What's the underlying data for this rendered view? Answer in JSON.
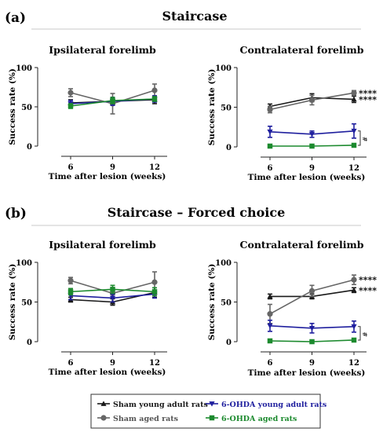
{
  "panels": [
    {
      "letter": "(a)",
      "title": "Staircase"
    },
    {
      "letter": "(b)",
      "title": "Staircase – Forced choice"
    }
  ],
  "chart_data": [
    {
      "type": "line",
      "panel": "(a)",
      "title": "Ipsilateral forelimb",
      "xlabel": "Time after lesion (weeks)",
      "ylabel": "Success rate (%)",
      "x": [
        6,
        9,
        12
      ],
      "xticks": [
        "6",
        "9",
        "12"
      ],
      "ylim": [
        0,
        100
      ],
      "yticks": [
        "0",
        "50",
        "100"
      ],
      "series": [
        {
          "name": "Sham young adult rats",
          "color": "#1a1a1a",
          "marker": "triangle-up",
          "values": [
            55,
            57,
            59
          ],
          "err": [
            4,
            5,
            5
          ]
        },
        {
          "name": "Sham aged rats",
          "color": "#666666",
          "marker": "circle",
          "values": [
            68,
            54,
            71
          ],
          "err": [
            5,
            13,
            8
          ]
        },
        {
          "name": "6-OHDA young adult rats",
          "color": "#1f1f9e",
          "marker": "triangle-down",
          "values": [
            54,
            57,
            60
          ],
          "err": [
            4,
            5,
            4
          ]
        },
        {
          "name": "6-OHDA aged rats",
          "color": "#1c8a2e",
          "marker": "square",
          "values": [
            51,
            58,
            60
          ],
          "err": [
            3,
            4,
            3
          ]
        }
      ],
      "annotations": []
    },
    {
      "type": "line",
      "panel": "(a)",
      "title": "Contralateral forelimb",
      "xlabel": "Time after lesion (weeks)",
      "ylabel": "Success rate (%)",
      "x": [
        6,
        9,
        12
      ],
      "xticks": [
        "6",
        "9",
        "12"
      ],
      "ylim": [
        0,
        100
      ],
      "yticks": [
        "0",
        "50",
        "100"
      ],
      "series": [
        {
          "name": "Sham young adult rats",
          "color": "#1a1a1a",
          "marker": "triangle-up",
          "values": [
            51,
            62,
            60
          ],
          "err": [
            3,
            5,
            4
          ]
        },
        {
          "name": "Sham aged rats",
          "color": "#666666",
          "marker": "circle",
          "values": [
            47,
            59,
            68
          ],
          "err": [
            4,
            6,
            3
          ]
        },
        {
          "name": "6-OHDA young adult rats",
          "color": "#1f1f9e",
          "marker": "triangle-down",
          "values": [
            19,
            16,
            20
          ],
          "err": [
            7,
            4,
            9
          ]
        },
        {
          "name": "6-OHDA aged rats",
          "color": "#1c8a2e",
          "marker": "square",
          "values": [
            1,
            1,
            2
          ],
          "err": [
            1,
            1,
            1
          ]
        }
      ],
      "annotations": [
        {
          "text": "****",
          "series": "Sham aged rats"
        },
        {
          "text": "****",
          "series": "Sham young adult rats"
        },
        {
          "text": "#",
          "bracket": [
            "6-OHDA young adult rats",
            "6-OHDA aged rats"
          ]
        }
      ]
    },
    {
      "type": "line",
      "panel": "(b)",
      "title": "Ipsilateral forelimb",
      "xlabel": "Time after lesion (weeks)",
      "ylabel": "Success rate (%)",
      "x": [
        6,
        9,
        12
      ],
      "xticks": [
        "6",
        "9",
        "12"
      ],
      "ylim": [
        0,
        100
      ],
      "yticks": [
        "0",
        "50",
        "100"
      ],
      "series": [
        {
          "name": "Sham young adult rats",
          "color": "#1a1a1a",
          "marker": "triangle-up",
          "values": [
            53,
            50,
            62
          ],
          "err": [
            3,
            4,
            6
          ]
        },
        {
          "name": "Sham aged rats",
          "color": "#666666",
          "marker": "circle",
          "values": [
            77,
            61,
            75
          ],
          "err": [
            4,
            6,
            13
          ]
        },
        {
          "name": "6-OHDA young adult rats",
          "color": "#1f1f9e",
          "marker": "triangle-down",
          "values": [
            58,
            55,
            60
          ],
          "err": [
            5,
            5,
            5
          ]
        },
        {
          "name": "6-OHDA aged rats",
          "color": "#1c8a2e",
          "marker": "square",
          "values": [
            63,
            66,
            63
          ],
          "err": [
            4,
            5,
            5
          ]
        }
      ],
      "annotations": []
    },
    {
      "type": "line",
      "panel": "(b)",
      "title": "Contralateral forelimb",
      "xlabel": "Time after lesion (weeks)",
      "ylabel": "Success rate (%)",
      "x": [
        6,
        9,
        12
      ],
      "xticks": [
        "6",
        "9",
        "12"
      ],
      "ylim": [
        0,
        100
      ],
      "yticks": [
        "0",
        "50",
        "100"
      ],
      "series": [
        {
          "name": "Sham young adult rats",
          "color": "#1a1a1a",
          "marker": "triangle-up",
          "values": [
            57,
            57,
            65
          ],
          "err": [
            3,
            3,
            3
          ]
        },
        {
          "name": "Sham aged rats",
          "color": "#666666",
          "marker": "circle",
          "values": [
            35,
            64,
            78
          ],
          "err": [
            12,
            7,
            6
          ]
        },
        {
          "name": "6-OHDA young adult rats",
          "color": "#1f1f9e",
          "marker": "triangle-down",
          "values": [
            20,
            17,
            19
          ],
          "err": [
            7,
            6,
            7
          ]
        },
        {
          "name": "6-OHDA aged rats",
          "color": "#1c8a2e",
          "marker": "square",
          "values": [
            1,
            0,
            2
          ],
          "err": [
            1,
            1,
            1
          ]
        }
      ],
      "annotations": [
        {
          "text": "****",
          "series": "Sham aged rats"
        },
        {
          "text": "****",
          "series": "Sham young adult rats"
        },
        {
          "text": "#",
          "bracket": [
            "6-OHDA young adult rats",
            "6-OHDA aged rats"
          ]
        }
      ]
    }
  ],
  "legend": {
    "placement": "bottom",
    "entries": [
      {
        "label": "Sham young adult rats",
        "color": "#1a1a1a",
        "marker": "triangle-up"
      },
      {
        "label": "6-OHDA young adult rats",
        "color": "#1f1f9e",
        "marker": "triangle-down"
      },
      {
        "label": "Sham aged rats",
        "color": "#666666",
        "marker": "circle"
      },
      {
        "label": "6-OHDA aged rats",
        "color": "#1c8a2e",
        "marker": "square"
      }
    ]
  }
}
